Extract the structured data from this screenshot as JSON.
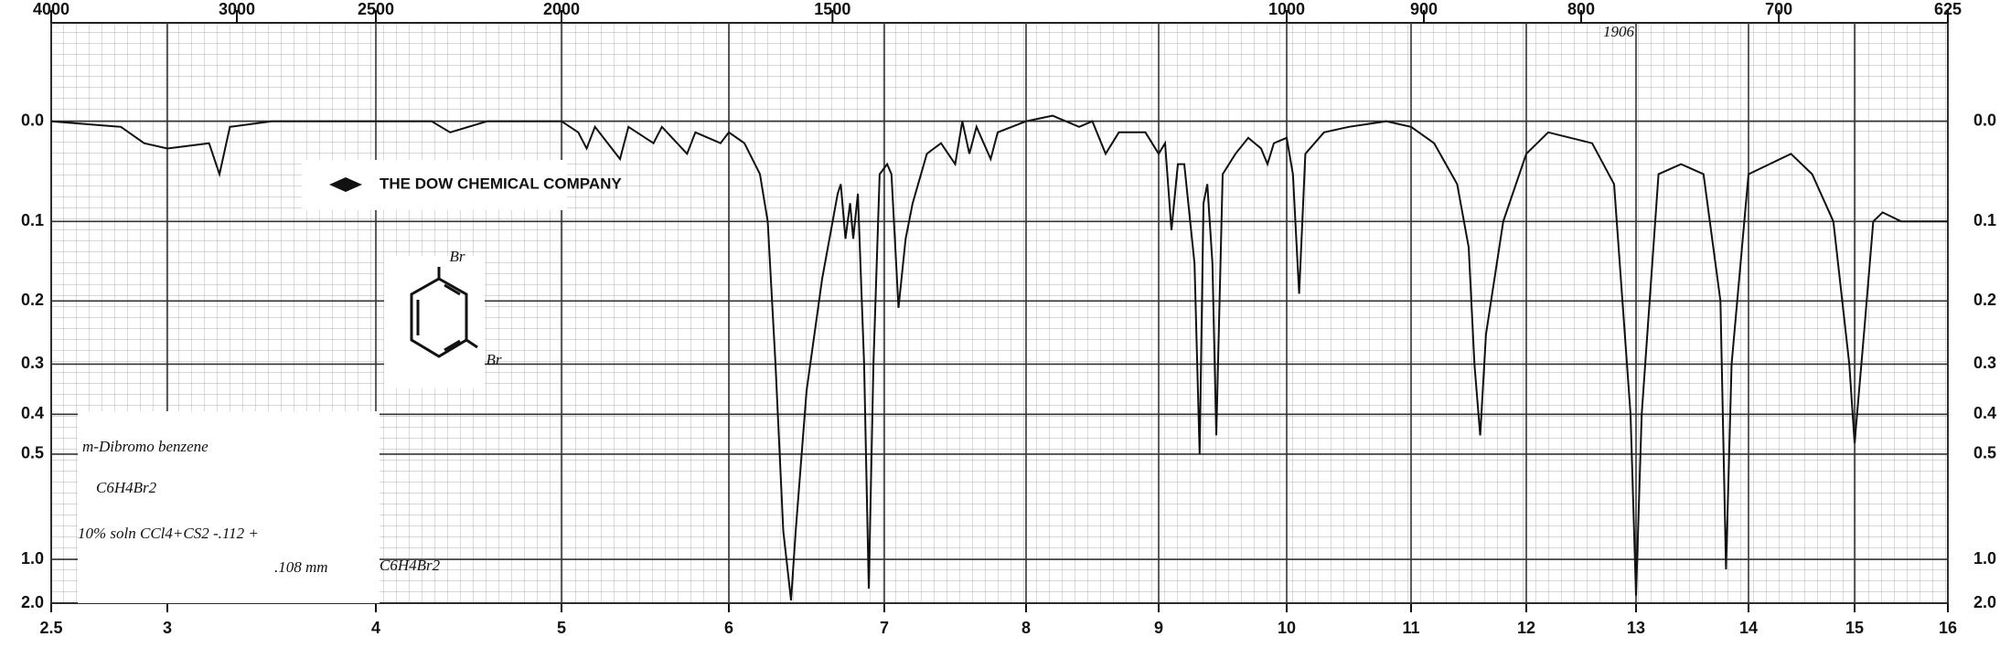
{
  "chart_data": {
    "type": "line",
    "y_scale": "transmittance",
    "grid": true,
    "color": "#111111",
    "xlim": [
      2.5,
      16
    ],
    "xticks": [
      2.5,
      3,
      4,
      5,
      6,
      7,
      8,
      9,
      10,
      11,
      12,
      13,
      14,
      15,
      16
    ],
    "x2ticks": [
      4000,
      3000,
      2500,
      2000,
      1500,
      1000,
      900,
      800,
      700,
      625
    ],
    "ylim": [
      -0.08,
      2
    ],
    "yticks": [
      {
        "value": 0,
        "label": "0.0"
      },
      0.1,
      0.2,
      0.3,
      0.4,
      0.5,
      {
        "value": 1,
        "label": "1.0"
      },
      {
        "value": 2,
        "label": "2.0"
      }
    ],
    "x": [
      2.5,
      2.8,
      2.9,
      3.0,
      3.2,
      3.25,
      3.3,
      3.5,
      4.0,
      4.3,
      4.4,
      4.6,
      5.0,
      5.1,
      5.15,
      5.2,
      5.35,
      5.4,
      5.55,
      5.6,
      5.75,
      5.8,
      5.95,
      6.0,
      6.1,
      6.2,
      6.25,
      6.3,
      6.35,
      6.4,
      6.43,
      6.5,
      6.6,
      6.7,
      6.72,
      6.75,
      6.78,
      6.8,
      6.83,
      6.87,
      6.9,
      6.93,
      6.97,
      7.02,
      7.05,
      7.1,
      7.15,
      7.2,
      7.3,
      7.4,
      7.5,
      7.55,
      7.6,
      7.65,
      7.75,
      7.8,
      8.0,
      8.2,
      8.4,
      8.5,
      8.6,
      8.7,
      8.9,
      9.0,
      9.05,
      9.1,
      9.15,
      9.2,
      9.28,
      9.32,
      9.35,
      9.38,
      9.42,
      9.45,
      9.5,
      9.6,
      9.7,
      9.8,
      9.85,
      9.9,
      10.0,
      10.05,
      10.1,
      10.15,
      10.3,
      10.5,
      10.8,
      11.0,
      11.2,
      11.4,
      11.5,
      11.55,
      11.6,
      11.65,
      11.8,
      12.0,
      12.2,
      12.6,
      12.8,
      12.95,
      13.0,
      13.05,
      13.2,
      13.4,
      13.6,
      13.75,
      13.8,
      13.85,
      14.0,
      14.4,
      14.6,
      14.8,
      14.95,
      15.0,
      15.1,
      15.2,
      15.3,
      15.5,
      16.0
    ],
    "values": [
      0.0,
      0.005,
      0.02,
      0.025,
      0.02,
      0.05,
      0.005,
      0.0,
      0.0,
      0.0,
      0.01,
      0.0,
      0.0,
      0.01,
      0.025,
      0.005,
      0.035,
      0.005,
      0.02,
      0.005,
      0.03,
      0.01,
      0.02,
      0.01,
      0.02,
      0.05,
      0.1,
      0.3,
      0.8,
      1.8,
      0.8,
      0.35,
      0.17,
      0.07,
      0.06,
      0.12,
      0.08,
      0.12,
      0.07,
      0.3,
      1.4,
      0.3,
      0.05,
      0.04,
      0.05,
      0.21,
      0.12,
      0.08,
      0.03,
      0.02,
      0.04,
      0.0,
      0.03,
      0.005,
      0.035,
      0.01,
      0.0,
      -0.005,
      0.005,
      0.0,
      0.03,
      0.01,
      0.01,
      0.03,
      0.02,
      0.11,
      0.04,
      0.04,
      0.15,
      0.5,
      0.08,
      0.06,
      0.15,
      0.45,
      0.05,
      0.03,
      0.015,
      0.025,
      0.04,
      0.02,
      0.015,
      0.05,
      0.19,
      0.03,
      0.01,
      0.005,
      0.0,
      0.005,
      0.02,
      0.06,
      0.13,
      0.3,
      0.45,
      0.25,
      0.1,
      0.03,
      0.01,
      0.02,
      0.06,
      0.4,
      1.6,
      0.4,
      0.05,
      0.04,
      0.05,
      0.2,
      1.1,
      0.3,
      0.05,
      0.03,
      0.05,
      0.1,
      0.3,
      0.47,
      0.25,
      0.1,
      0.09,
      0.1,
      0.1
    ],
    "annotations": [
      "1906",
      "THE DOW CHEMICAL COMPANY",
      "Br",
      "Br",
      "m-Dibromo benzene",
      "C6H4Br2",
      "10% soln CCl4+CS2 -.112 +",
      ".108 mm",
      "C6H4Br2"
    ]
  }
}
